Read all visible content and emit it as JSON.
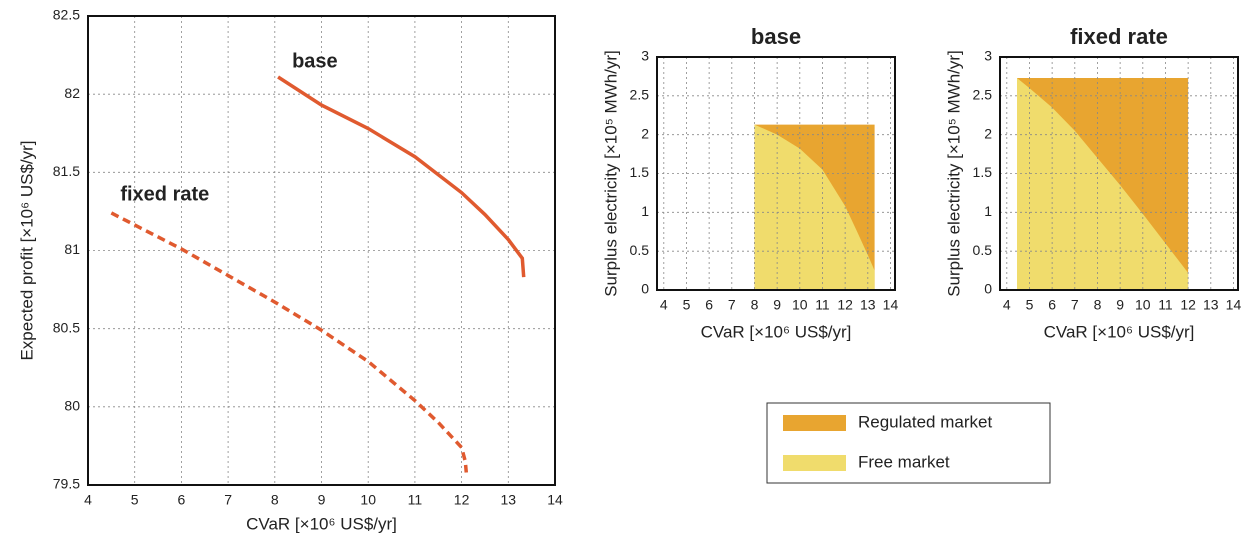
{
  "chart_data": [
    {
      "type": "line",
      "xlabel": "CVaR [×10⁶ US$/yr]",
      "ylabel": "Expected profit [×10⁶ US$/yr]",
      "xlim": [
        4,
        14
      ],
      "xticks": [
        4,
        5,
        6,
        7,
        8,
        9,
        10,
        11,
        12,
        13,
        14
      ],
      "ylim": [
        79.5,
        82.5
      ],
      "yticks": [
        79.5,
        80,
        80.5,
        81,
        81.5,
        82,
        82.5
      ],
      "grid": true,
      "series": [
        {
          "name": "base",
          "color": "#e05a2f",
          "linestyle": "solid",
          "x": [
            8.07,
            9,
            10,
            11,
            12,
            12.5,
            13,
            13.3,
            13.33
          ],
          "values": [
            82.11,
            81.93,
            81.78,
            81.6,
            81.37,
            81.23,
            81.07,
            80.95,
            80.83
          ]
        },
        {
          "name": "fixed rate",
          "color": "#e05a2f",
          "linestyle": "dashed",
          "x": [
            4.5,
            6,
            7,
            8,
            9,
            10,
            11,
            11.5,
            12,
            12.08,
            12.1
          ],
          "values": [
            81.24,
            81.01,
            80.84,
            80.67,
            80.49,
            80.29,
            80.04,
            79.9,
            79.74,
            79.65,
            79.58
          ]
        }
      ]
    },
    {
      "type": "area",
      "title": "base",
      "xlabel": "CVaR [×10⁶ US$/yr]",
      "ylabel": "Surplus electricity [×10⁵ MWh/yr]",
      "xlim": [
        3.7,
        14.2
      ],
      "xticks": [
        4,
        5,
        6,
        7,
        8,
        9,
        10,
        11,
        12,
        13,
        14
      ],
      "ylim": [
        0,
        3
      ],
      "yticks": [
        0,
        0.5,
        1,
        1.5,
        2,
        2.5,
        3
      ],
      "grid": true,
      "series": [
        {
          "name": "Regulated market",
          "color": "#e8a530",
          "x": [
            8,
            13.3
          ],
          "values": [
            2.13,
            2.13
          ]
        },
        {
          "name": "Free market",
          "color": "#f0dc6c",
          "x": [
            8,
            9,
            10,
            11,
            12,
            12.5,
            13,
            13.3
          ],
          "values": [
            2.13,
            2.0,
            1.82,
            1.55,
            1.08,
            0.77,
            0.45,
            0.25
          ]
        }
      ]
    },
    {
      "type": "area",
      "title": "fixed rate",
      "xlabel": "CVaR [×10⁶ US$/yr]",
      "ylabel": "Surplus electricity [×10⁵ MWh/yr]",
      "xlim": [
        3.7,
        14.2
      ],
      "xticks": [
        4,
        5,
        6,
        7,
        8,
        9,
        10,
        11,
        12,
        13,
        14
      ],
      "ylim": [
        0,
        3
      ],
      "yticks": [
        0,
        0.5,
        1,
        1.5,
        2,
        2.5,
        3
      ],
      "grid": true,
      "series": [
        {
          "color": "#e8a530",
          "x": [
            4.45,
            12
          ],
          "values": [
            2.73,
            2.73
          ]
        },
        {
          "color": "#f0dc6c",
          "x": [
            4.45,
            5,
            6,
            7,
            8,
            9,
            10,
            11,
            12
          ],
          "values": [
            2.73,
            2.6,
            2.35,
            2.05,
            1.7,
            1.35,
            0.98,
            0.6,
            0.22
          ]
        }
      ]
    }
  ]
}
